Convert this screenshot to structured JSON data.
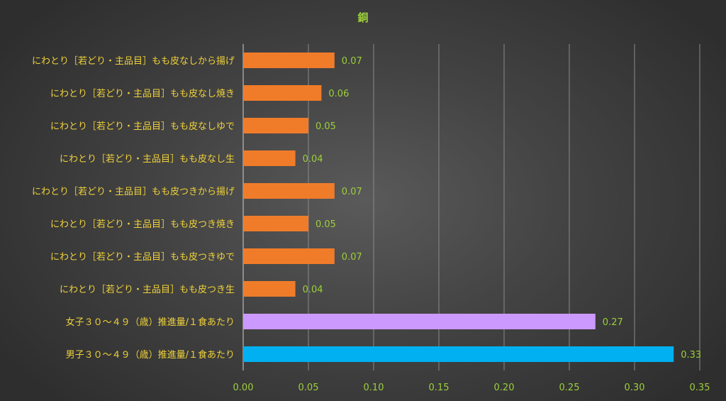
{
  "chart_data": {
    "type": "bar",
    "orientation": "horizontal",
    "title": "銅",
    "xlabel": "",
    "ylabel": "",
    "xlim": [
      0,
      0.35
    ],
    "xticks": [
      "0.00",
      "0.05",
      "0.10",
      "0.15",
      "0.20",
      "0.25",
      "0.30",
      "0.35"
    ],
    "grid": true,
    "categories": [
      "にわとり［若どり・主品目］もも皮なしから揚げ",
      "にわとり［若どり・主品目］もも皮なし焼き",
      "にわとり［若どり・主品目］もも皮なしゆで",
      "にわとり［若どり・主品目］もも皮なし生",
      "にわとり［若どり・主品目］もも皮つきから揚げ",
      "にわとり［若どり・主品目］もも皮つき焼き",
      "にわとり［若どり・主品目］もも皮つきゆで",
      "にわとり［若どり・主品目］もも皮つき生",
      "女子３０～４９（歳）推進量/１食あたり",
      "男子３０～４９（歳）推進量/１食あたり"
    ],
    "values": [
      0.07,
      0.06,
      0.05,
      0.04,
      0.07,
      0.05,
      0.07,
      0.04,
      0.27,
      0.33
    ],
    "value_labels": [
      "0.07",
      "0.06",
      "0.05",
      "0.04",
      "0.07",
      "0.05",
      "0.07",
      "0.04",
      "0.27",
      "0.33"
    ],
    "colors": [
      "#f07c2a",
      "#f07c2a",
      "#f07c2a",
      "#f07c2a",
      "#f07c2a",
      "#f07c2a",
      "#f07c2a",
      "#f07c2a",
      "#cc99ff",
      "#00b0f0"
    ],
    "colors_meta": {
      "label_text": "#f0d23a",
      "value_text": "#9ccf3a",
      "grid": "#8a8a8a"
    }
  }
}
